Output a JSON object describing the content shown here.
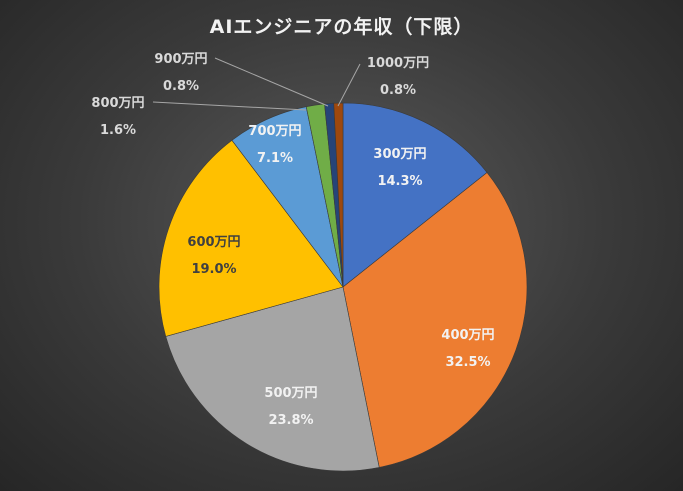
{
  "chart_data": {
    "type": "pie",
    "title": "AIエンジニアの年収（下限）",
    "slices": [
      {
        "label": "300万円",
        "pct_text": "14.3%",
        "value": 14.3,
        "color": "#4472C4"
      },
      {
        "label": "400万円",
        "pct_text": "32.5%",
        "value": 32.5,
        "color": "#ED7D31"
      },
      {
        "label": "500万円",
        "pct_text": "23.8%",
        "value": 23.8,
        "color": "#A5A5A5"
      },
      {
        "label": "600万円",
        "pct_text": "19.0%",
        "value": 19.0,
        "color": "#FFC000"
      },
      {
        "label": "700万円",
        "pct_text": "7.1%",
        "value": 7.1,
        "color": "#5B9BD5"
      },
      {
        "label": "800万円",
        "pct_text": "1.6%",
        "value": 1.6,
        "color": "#70AD47"
      },
      {
        "label": "900万円",
        "pct_text": "0.8%",
        "value": 0.8,
        "color": "#264478"
      },
      {
        "label": "1000万円",
        "pct_text": "0.8%",
        "value": 0.8,
        "color": "#9E480E"
      }
    ]
  }
}
